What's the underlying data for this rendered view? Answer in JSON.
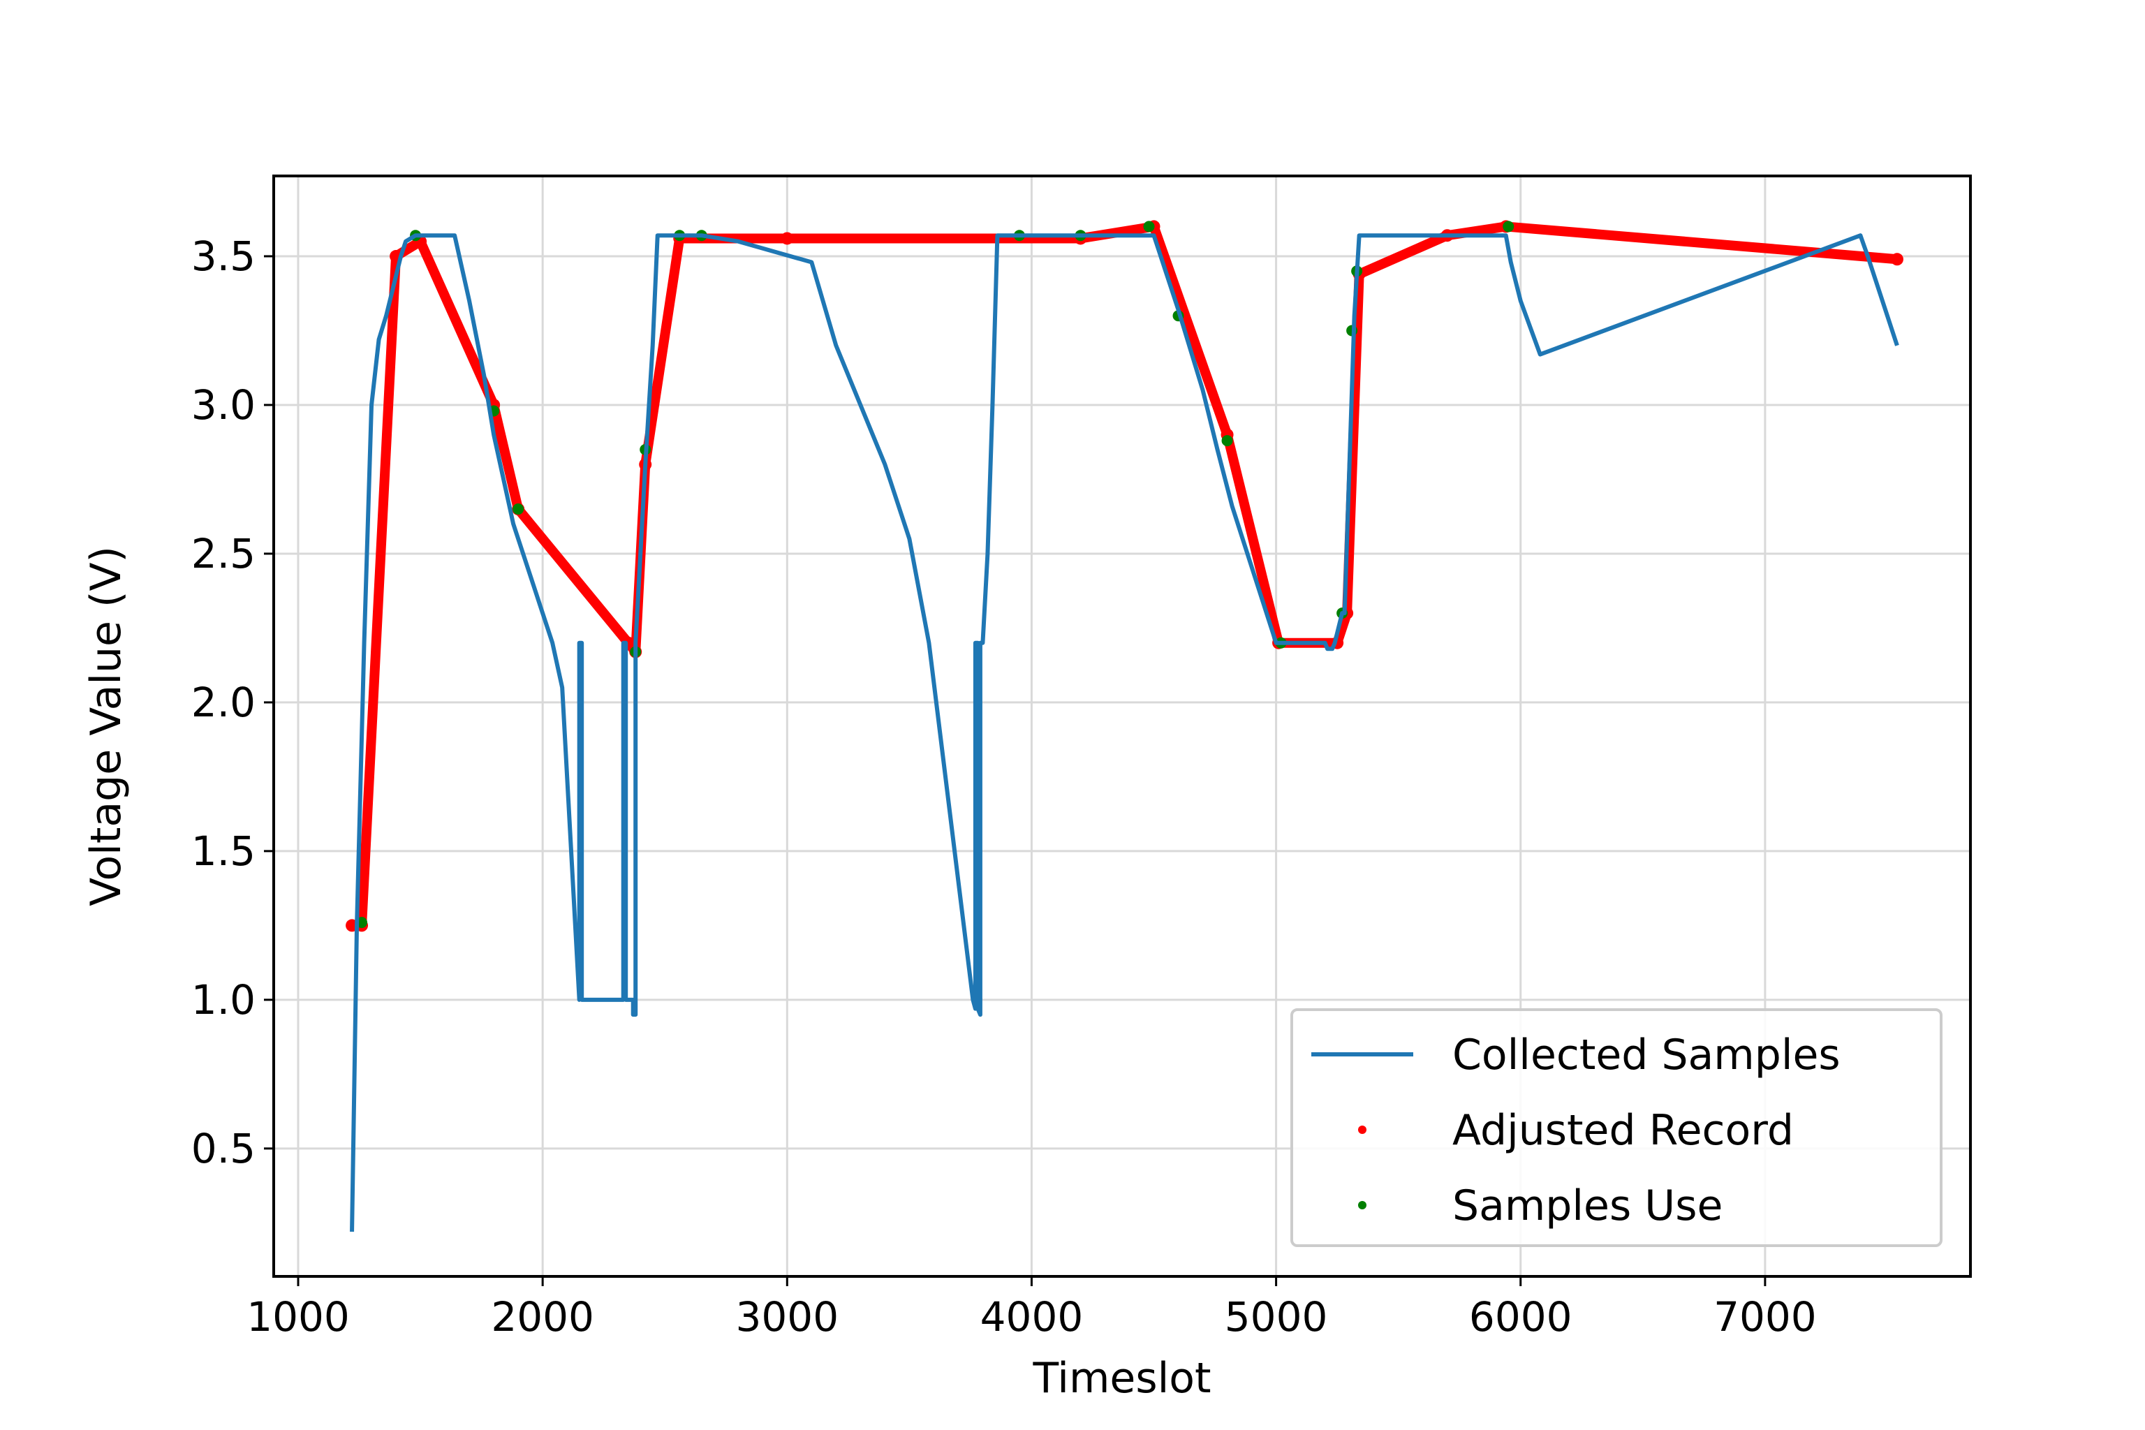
{
  "chart_data": {
    "type": "line",
    "xlabel": "Timeslot",
    "ylabel": "Voltage Value (V)",
    "xlim": [
      900,
      7840
    ],
    "ylim": [
      0.07,
      3.77
    ],
    "xticks": [
      1000,
      2000,
      3000,
      4000,
      5000,
      6000,
      7000
    ],
    "yticks": [
      0.5,
      1.0,
      1.5,
      2.0,
      2.5,
      3.0,
      3.5
    ],
    "xtick_labels": [
      "1000",
      "2000",
      "3000",
      "4000",
      "5000",
      "6000",
      "7000"
    ],
    "ytick_labels": [
      "0.5",
      "1.0",
      "1.5",
      "2.0",
      "2.5",
      "3.0",
      "3.5"
    ],
    "grid": true,
    "legend": {
      "position": "lower-right",
      "entries": [
        "Collected Samples",
        "Adjusted Record",
        "Samples Use"
      ]
    },
    "colors": {
      "collected": "#1f77b4",
      "adjusted": "#ff0000",
      "samples_use": "#008000"
    },
    "series": [
      {
        "name": "Collected Samples",
        "style": "line",
        "x": [
          1220,
          1240,
          1270,
          1300,
          1330,
          1360,
          1390,
          1420,
          1440,
          1480,
          1640,
          1700,
          1760,
          1800,
          1840,
          1880,
          1920,
          1960,
          2000,
          2040,
          2080,
          2150,
          2150,
          2160,
          2160,
          2330,
          2330,
          2340,
          2340,
          2370,
          2370,
          2380,
          2380,
          2420,
          2450,
          2470,
          2560,
          2650,
          2800,
          3100,
          3200,
          3300,
          3400,
          3500,
          3580,
          3760,
          3770,
          3770,
          3780,
          3780,
          3790,
          3790,
          3800,
          3820,
          3840,
          3860,
          4150,
          4500,
          4600,
          4700,
          4760,
          4820,
          5000,
          5020,
          5200,
          5210,
          5230,
          5240,
          5270,
          5280,
          5300,
          5320,
          5340,
          5350,
          5940,
          5960,
          6000,
          6040,
          6080,
          7390,
          7420,
          7460,
          7500,
          7540
        ],
        "y": [
          0.22,
          1.25,
          2.2,
          3.0,
          3.22,
          3.3,
          3.4,
          3.5,
          3.55,
          3.57,
          3.57,
          3.35,
          3.1,
          2.9,
          2.75,
          2.6,
          2.5,
          2.4,
          2.3,
          2.2,
          2.05,
          1.0,
          2.2,
          2.2,
          1.0,
          1.0,
          2.2,
          2.2,
          1.0,
          1.0,
          0.95,
          0.95,
          2.2,
          2.8,
          3.2,
          3.57,
          3.57,
          3.57,
          3.55,
          3.48,
          3.2,
          3.0,
          2.8,
          2.55,
          2.2,
          1.0,
          0.97,
          2.2,
          2.2,
          0.97,
          0.95,
          2.2,
          2.2,
          2.5,
          3.0,
          3.57,
          3.57,
          3.57,
          3.32,
          3.05,
          2.85,
          2.66,
          2.2,
          2.2,
          2.2,
          2.18,
          2.18,
          2.2,
          2.3,
          2.3,
          2.8,
          3.3,
          3.57,
          3.57,
          3.57,
          3.48,
          3.35,
          3.26,
          3.17,
          3.57,
          3.5,
          3.4,
          3.3,
          3.2
        ]
      },
      {
        "name": "Adjusted Record",
        "style": "dots",
        "x": [
          1220,
          1260,
          1400,
          1500,
          1800,
          1900,
          2350,
          2380,
          2420,
          2560,
          3000,
          4200,
          4500,
          4800,
          5010,
          5250,
          5290,
          5340,
          5700,
          5940,
          7540
        ],
        "y": [
          1.25,
          1.25,
          3.5,
          3.55,
          3.0,
          2.65,
          2.2,
          2.17,
          2.8,
          3.56,
          3.56,
          3.56,
          3.6,
          2.9,
          2.2,
          2.2,
          2.3,
          3.44,
          3.57,
          3.6,
          3.49
        ]
      },
      {
        "name": "Samples Use",
        "style": "dots",
        "x": [
          1260,
          1480,
          1800,
          1900,
          2380,
          2420,
          2560,
          2650,
          3950,
          4200,
          4480,
          4600,
          4800,
          5020,
          5270,
          5310,
          5330,
          5950
        ],
        "y": [
          1.26,
          3.57,
          2.98,
          2.65,
          2.17,
          2.85,
          3.57,
          3.57,
          3.57,
          3.57,
          3.6,
          3.3,
          2.88,
          2.2,
          2.3,
          3.25,
          3.45,
          3.6
        ]
      }
    ]
  }
}
